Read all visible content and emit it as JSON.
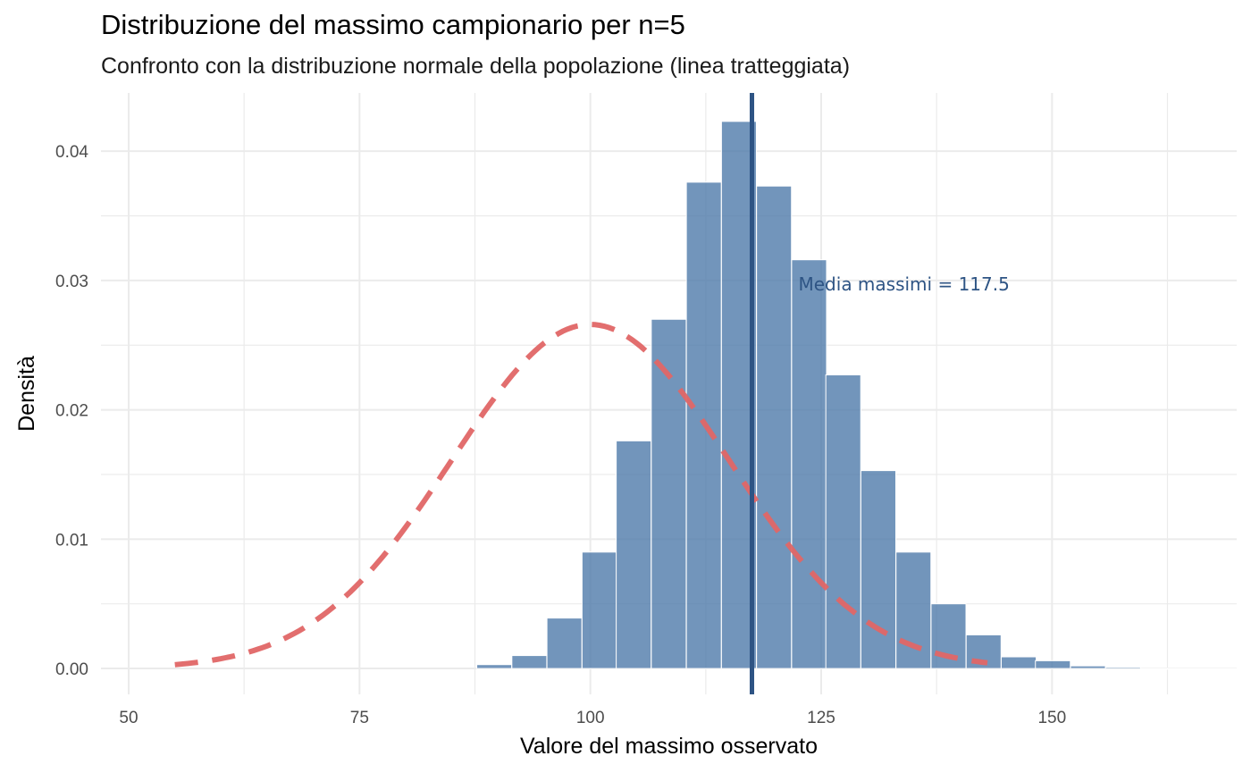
{
  "chart_data": {
    "type": "bar",
    "title": "Distribuzione del massimo campionario per n=5",
    "subtitle": "Confronto con la distribuzione normale della popolazione (linea tratteggiata)",
    "xlabel": "Valore del massimo osservato",
    "ylabel": "Densità",
    "xlim": [
      47,
      170
    ],
    "ylim": [
      -0.002,
      0.0445
    ],
    "x_ticks": [
      50,
      75,
      100,
      125,
      150
    ],
    "y_ticks": [
      0.0,
      0.01,
      0.02,
      0.03,
      0.04
    ],
    "y_tick_labels": [
      "0.00",
      "0.01",
      "0.02",
      "0.03",
      "0.04"
    ],
    "grid": true,
    "histogram": {
      "bin_width": 3.78,
      "bin_starts": [
        87.7,
        91.5,
        95.3,
        99.1,
        102.8,
        106.6,
        110.4,
        114.2,
        118.0,
        121.8,
        125.5,
        129.3,
        133.1,
        136.9,
        140.7,
        144.5,
        148.2,
        152.0,
        155.8,
        159.6,
        163.4,
        167.2
      ],
      "densities": [
        0.0003,
        0.001,
        0.0039,
        0.009,
        0.0176,
        0.027,
        0.0376,
        0.0423,
        0.0373,
        0.0316,
        0.0227,
        0.0153,
        0.009,
        0.005,
        0.0026,
        0.0009,
        0.0006,
        0.0002,
        0.0001,
        0.0,
        0.0,
        0.0
      ],
      "fill": "#4a77a8"
    },
    "normal_curve": {
      "mean": 100,
      "sd": 15,
      "x_range": [
        55,
        143
      ],
      "style": "dashed",
      "color": "#e06666"
    },
    "mean_line": {
      "x": 117.5,
      "color": "#2e5484",
      "label": "Media massimi = 117.5"
    }
  }
}
